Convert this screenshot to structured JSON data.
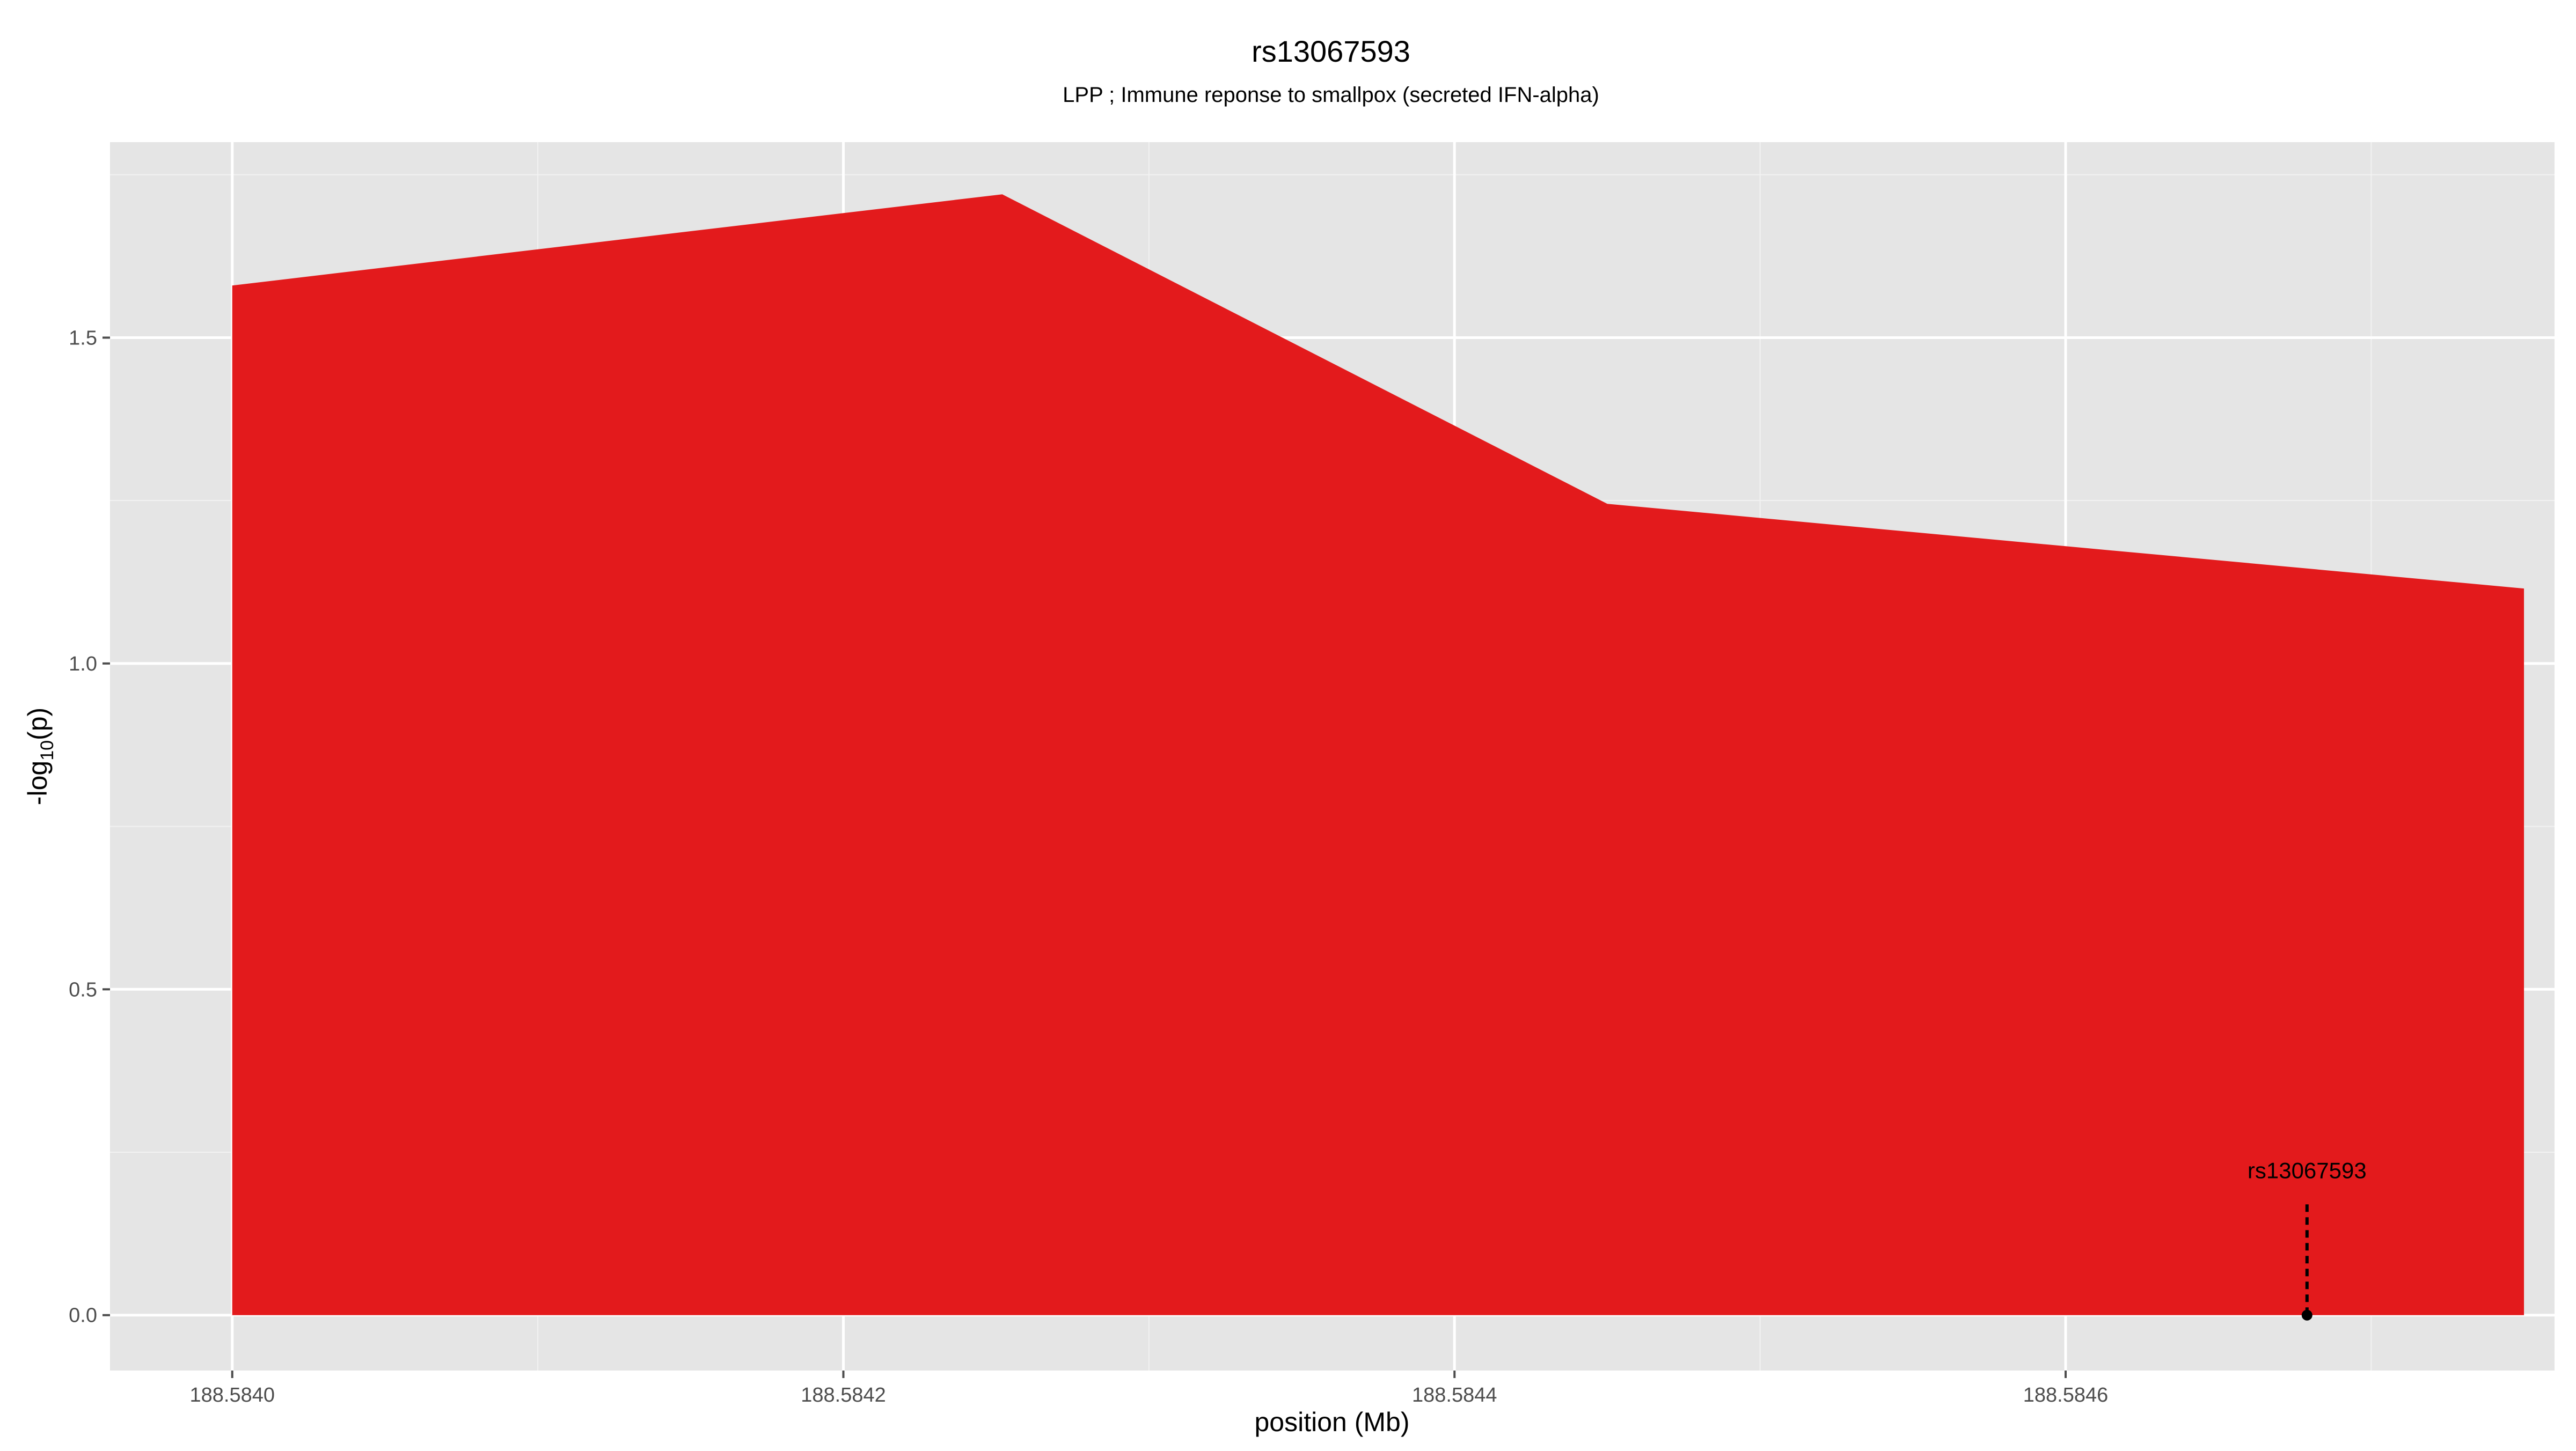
{
  "chart_data": {
    "type": "area",
    "title": "rs13067593",
    "subtitle": "LPP ; Immune reponse to smallpox (secreted IFN-alpha)",
    "xlabel": "position (Mb)",
    "ylabel_main": "-log",
    "ylabel_sub": "10",
    "ylabel_tail": "(p)",
    "xlim": [
      188.58396,
      188.58476
    ],
    "ylim": [
      -0.085,
      1.8
    ],
    "x_ticks": [
      188.584,
      188.5842,
      188.5844,
      188.5846
    ],
    "x_tick_labels": [
      "188.5840",
      "188.5842",
      "188.5844",
      "188.5846"
    ],
    "y_ticks": [
      0.0,
      0.5,
      1.0,
      1.5
    ],
    "y_tick_labels": [
      "0.0",
      "0.5",
      "1.0",
      "1.5"
    ],
    "x_minor": [
      188.5841,
      188.5843,
      188.5845,
      188.5847
    ],
    "y_minor": [
      0.25,
      0.75,
      1.25,
      1.75
    ],
    "grid": true,
    "area_color": "#e31a1c",
    "panel_color": "#e5e5e5",
    "grid_color": "#ffffff",
    "series": [
      {
        "x": [
          188.584,
          188.584252,
          188.58445,
          188.58475
        ],
        "y": [
          1.58,
          1.72,
          1.245,
          1.115
        ]
      }
    ],
    "annotation": {
      "label": "rs13067593",
      "x": 188.584679,
      "y": 0.0,
      "label_y": 0.21,
      "line_top_y": 0.17
    }
  }
}
